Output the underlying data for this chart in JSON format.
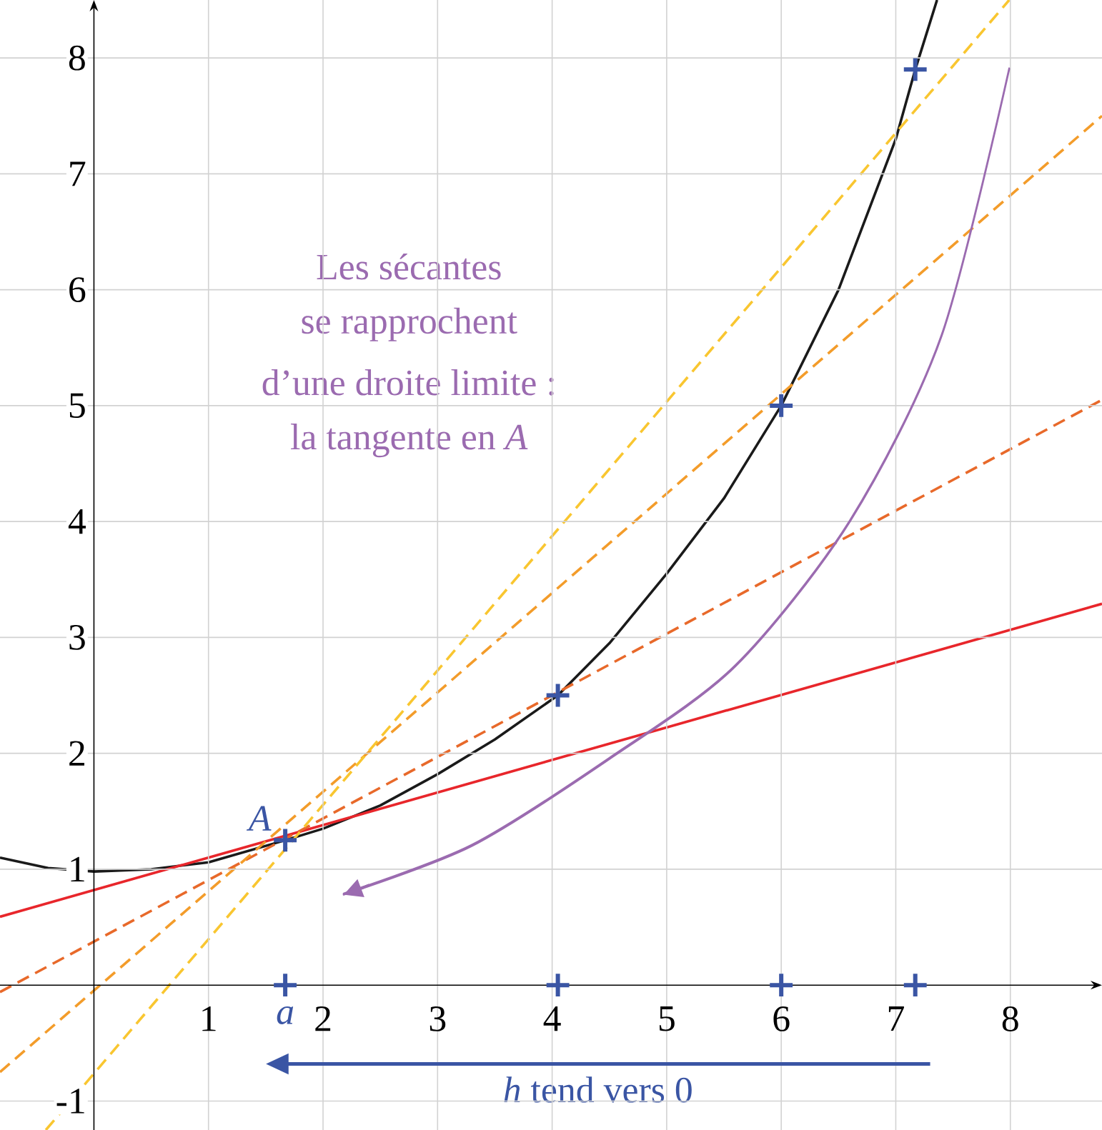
{
  "chart_data": {
    "type": "line",
    "annotations": [
      "Les sécantes",
      "se rapprochent",
      "d’une droite limite :",
      "la tangente en *A*",
      {
        "text": "A",
        "x": 1.67,
        "y": 1.25
      },
      "*h* tend vers 0"
    ],
    "xlim": [
      -0.82,
      8.8
    ],
    "ylim": [
      -1.25,
      8.5
    ],
    "xticks": [
      1,
      {
        "value": 1.67,
        "label": "a"
      },
      2,
      3,
      4,
      5,
      6,
      7,
      8
    ],
    "yticks": [
      -1,
      1,
      2,
      3,
      4,
      5,
      6,
      7,
      8
    ],
    "grid": true,
    "series": [
      {
        "type": "line",
        "color": "#1a1a1a",
        "line_style": "solid",
        "x": [
          -0.82,
          -0.4,
          0,
          0.5,
          1,
          1.67,
          2,
          2.5,
          3,
          3.5,
          4.05,
          4.5,
          5,
          5.5,
          6,
          6.5,
          7,
          7.17,
          7.36
        ],
        "values": [
          1.1,
          1.01,
          0.98,
          1.0,
          1.06,
          1.25,
          1.35,
          1.55,
          1.82,
          2.12,
          2.5,
          2.95,
          3.55,
          4.2,
          5.0,
          6.0,
          7.3,
          7.9,
          8.5
        ]
      },
      {
        "color": "#e8262b",
        "line_style": "solid",
        "x": [
          -0.82,
          8.8
        ],
        "values": [
          0.59,
          3.29
        ]
      },
      {
        "color": "#e8692a",
        "line_style": "dashed",
        "x": [
          -0.82,
          8.8
        ],
        "values": [
          -0.06,
          5.05
        ]
      },
      {
        "color": "#f39c2a",
        "line_style": "dashed",
        "x": [
          -0.82,
          8.8
        ],
        "values": [
          -0.75,
          7.5
        ]
      },
      {
        "color": "#f9c630",
        "line_style": "dashed",
        "x": [
          -0.42,
          7.99
        ],
        "values": [
          -1.25,
          8.5
        ]
      },
      {
        "type": "scatter",
        "color": "#3a55a4",
        "marker": "cross",
        "x": [
          1.67,
          4.05,
          6,
          7.17,
          1.67,
          4.05,
          6,
          7.17
        ],
        "values": [
          1.25,
          2.5,
          5,
          7.9,
          0,
          0,
          0,
          0
        ]
      }
    ]
  }
}
